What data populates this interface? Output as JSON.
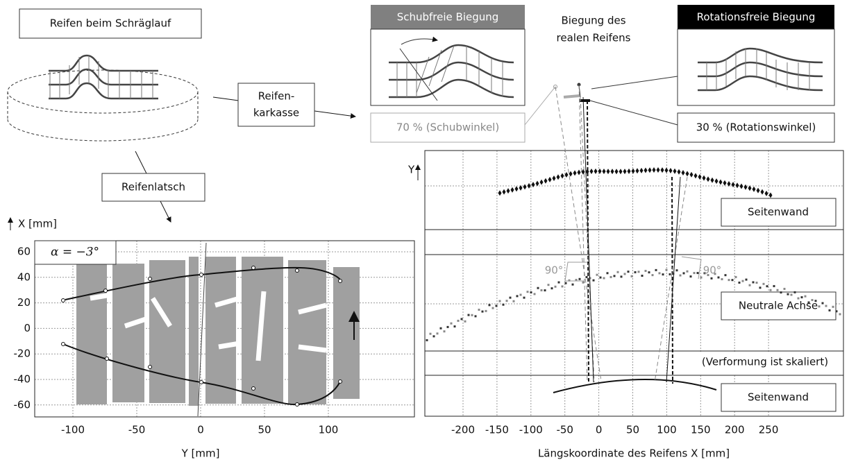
{
  "labels": {
    "tire_slip": "Reifen beim Schräglauf",
    "carcass": [
      "Reifen-",
      "karkasse"
    ],
    "contact_patch": "Reifenlatsch",
    "shear_free": "Schubfreie Biegung",
    "real_tire": [
      "Biegung des",
      "realen Reifens"
    ],
    "rot_free": "Rotationsfreie Biegung",
    "shear_pct": "70 % (Schubwinkel)",
    "rot_pct": "30 % (Rotationswinkel)"
  },
  "left_plot": {
    "alpha": "α = −3°",
    "y_axis_label": "X [mm]",
    "x_axis_label": "Y [mm]",
    "xticks": [
      -100,
      -50,
      0,
      50,
      100
    ],
    "yticks": [
      60,
      40,
      20,
      0,
      -20,
      -40,
      -60
    ]
  },
  "right_plot": {
    "y_label": "Y",
    "sidewall_top": "Seitenwand",
    "neutral_axis": "Neutrale Achse",
    "scaled_note": "(Verformung ist skaliert)",
    "sidewall_bottom": "Seitenwand",
    "angle_left": "90°",
    "angle_right": "90°",
    "x_axis_label": "Längskoordinate des Reifens X [mm]",
    "xticks": [
      -200,
      -150,
      -100,
      -50,
      0,
      50,
      100,
      150,
      200,
      250
    ]
  }
}
